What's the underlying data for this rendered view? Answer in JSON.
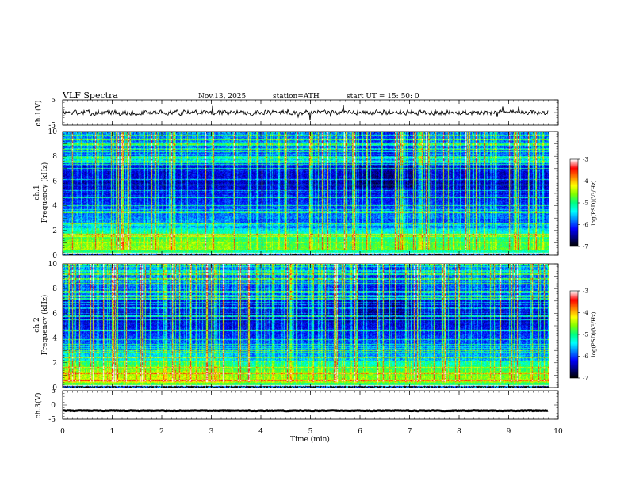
{
  "header": {
    "title": "VLF  Spectra",
    "date": "Nov.13, 2025",
    "station": "station=ATH",
    "start": "start  UT  =    15: 50: 0"
  },
  "chart_data": [
    {
      "type": "line",
      "name": "ch1-waveform",
      "ylabel": "ch.1(V)",
      "ylim": [
        -5,
        5
      ],
      "yticks": [
        "5",
        "-5"
      ],
      "xlim": [
        0,
        10
      ],
      "x_end": 9.8,
      "baseline": 0,
      "noise_amplitude": 1.2
    },
    {
      "type": "heatmap",
      "name": "ch1-spectrogram",
      "ylabel": "ch.1\nFrequency  (kHz)",
      "ylabel_lines": [
        "ch.1",
        "Frequency  (kHz)"
      ],
      "ylim": [
        0,
        10
      ],
      "yticks": [
        "10",
        "8",
        "6",
        "4",
        "2",
        "0"
      ],
      "xlim": [
        0,
        10
      ],
      "x_end": 9.8,
      "colorbar": {
        "label": "log(PSD)(V²/Hz)",
        "ticks": [
          "-3",
          "-4",
          "-5",
          "-6",
          "-7"
        ],
        "range": [
          -7,
          -3
        ]
      }
    },
    {
      "type": "heatmap",
      "name": "ch2-spectrogram",
      "ylabel": "ch.2\nFrequency  (kHz)",
      "ylabel_lines": [
        "ch.2",
        "Frequency  (kHz)"
      ],
      "ylim": [
        0,
        10
      ],
      "yticks": [
        "10",
        "8",
        "6",
        "4",
        "2",
        "0"
      ],
      "xlim": [
        0,
        10
      ],
      "x_end": 9.8,
      "colorbar": {
        "label": "log(PSD)(V²/Hz)",
        "ticks": [
          "-3",
          "-4",
          "-5",
          "-6",
          "-7"
        ],
        "range": [
          -7,
          -3
        ]
      }
    },
    {
      "type": "line",
      "name": "ch3-waveform",
      "ylabel": "ch.3(V)",
      "ylim": [
        -5,
        5
      ],
      "yticks": [
        "5",
        "0",
        "-5"
      ],
      "xlim": [
        0,
        10
      ],
      "x_end": 9.8,
      "baseline": -2,
      "noise_amplitude": 0.15
    }
  ],
  "xaxis": {
    "label": "Time  (min)",
    "ticks": [
      "0",
      "1",
      "2",
      "3",
      "4",
      "5",
      "6",
      "7",
      "8",
      "9",
      "10"
    ]
  },
  "colors": {
    "cmap": [
      "#000000",
      "#000080",
      "#0000ff",
      "#0080ff",
      "#00ffff",
      "#00ff80",
      "#80ff00",
      "#ffff00",
      "#ff8000",
      "#ff0000",
      "#ffffff"
    ]
  }
}
